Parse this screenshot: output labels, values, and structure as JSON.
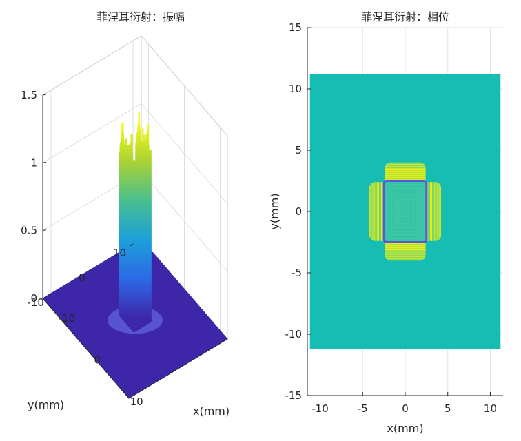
{
  "chart_data": [
    {
      "type": "surface",
      "title": "菲涅耳衍射：振幅",
      "xlabel": "x(mm)",
      "ylabel": "y(mm)",
      "zlabel": "",
      "xlim": [
        -12,
        12
      ],
      "ylim": [
        -12,
        12
      ],
      "zlim": [
        0,
        1.5
      ],
      "xticks": [
        "-10",
        "0",
        "10"
      ],
      "yticks": [
        "-10",
        "0",
        "10"
      ],
      "zticks": [
        "0",
        "0.5",
        "1",
        "1.5"
      ],
      "grid": true,
      "colormap": "parula",
      "peak_halfwidth_mm": 2,
      "peak_height": 1.2,
      "max_height": 1.45
    },
    {
      "type": "heatmap",
      "title": "菲涅耳衍射：相位",
      "xlabel": "x(mm)",
      "ylabel": "y(mm)",
      "xlim": [
        -11.5,
        11.5
      ],
      "ylim": [
        -15,
        15
      ],
      "xticks": [
        "-10",
        "-5",
        "0",
        "5",
        "10"
      ],
      "yticks": [
        "-15",
        "-10",
        "-5",
        "0",
        "5",
        "10",
        "15"
      ],
      "image_extent_x": [
        -11.2,
        11.2
      ],
      "image_extent_y": [
        -11.2,
        11.2
      ],
      "aperture_halfwidth_mm": 2.5,
      "grid": true,
      "colors": {
        "background": "#15bdb3",
        "fringe": "#e6ee1a",
        "edge": "#5a55e0",
        "inner": "#35c5a5"
      }
    }
  ]
}
